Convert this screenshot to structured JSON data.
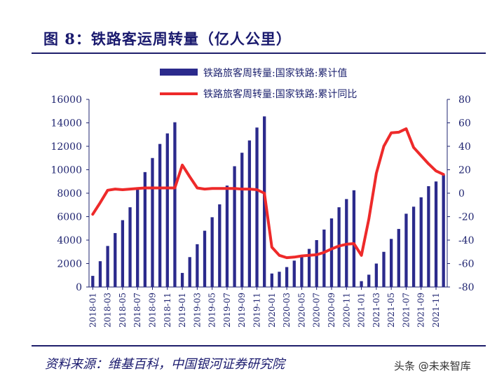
{
  "figure": {
    "title": "图 8：铁路客运周转量（亿人公里）",
    "source": "资料来源：维基百科，中国银河证券研究院",
    "watermark": "头条 @未来智库"
  },
  "colors": {
    "bar": "#2b2a8c",
    "line": "#ee2a2a",
    "text": "#1f2470"
  },
  "chart_data": {
    "type": "bar",
    "title": "",
    "categories": [
      "2018-01",
      "2018-02",
      "2018-03",
      "2018-04",
      "2018-05",
      "2018-06",
      "2018-07",
      "2018-08",
      "2018-09",
      "2018-10",
      "2018-11",
      "2018-12",
      "2019-01",
      "2019-02",
      "2019-03",
      "2019-04",
      "2019-05",
      "2019-06",
      "2019-07",
      "2019-08",
      "2019-09",
      "2019-10",
      "2019-11",
      "2019-12",
      "2020-01",
      "2020-02",
      "2020-03",
      "2020-04",
      "2020-05",
      "2020-06",
      "2020-07",
      "2020-08",
      "2020-09",
      "2020-10",
      "2020-11",
      "2020-12",
      "2021-01",
      "2021-02",
      "2021-03",
      "2021-04",
      "2021-05",
      "2021-06",
      "2021-07",
      "2021-08",
      "2021-09",
      "2021-10",
      "2021-11",
      "2021-12"
    ],
    "tick_labels": [
      "2018-01",
      "2018-03",
      "2018-05",
      "2018-07",
      "2018-09",
      "2018-11",
      "2019-01",
      "2019-03",
      "2019-05",
      "2019-07",
      "2019-09",
      "2019-11",
      "2020-01",
      "2020-03",
      "2020-05",
      "2020-07",
      "2020-09",
      "2020-11",
      "2021-01",
      "2021-03",
      "2021-05",
      "2021-07",
      "2021-09",
      "2021-11"
    ],
    "series": [
      {
        "name": "铁路旅客周转量:国家铁路:累计值",
        "type": "bar",
        "axis": "left",
        "values": [
          950,
          2200,
          3500,
          4600,
          5700,
          6800,
          8300,
          9800,
          11000,
          12200,
          13100,
          14050,
          1200,
          2550,
          3650,
          4800,
          5950,
          7050,
          8650,
          10300,
          11450,
          12500,
          13600,
          14550,
          1150,
          1300,
          1700,
          2250,
          2650,
          3250,
          4000,
          4900,
          5850,
          6800,
          7500,
          8250,
          500,
          1050,
          2000,
          3000,
          4100,
          4950,
          6250,
          6850,
          7650,
          8600,
          9000,
          9550
        ]
      },
      {
        "name": "铁路旅客周转量:国家铁路:累计同比",
        "type": "line",
        "axis": "right",
        "values": [
          -18,
          -8,
          2.5,
          3.5,
          3,
          3.5,
          4,
          4.5,
          4.5,
          4.5,
          4.5,
          4.5,
          24,
          14,
          4.5,
          3.5,
          4,
          4,
          4,
          4,
          3.5,
          3.5,
          3,
          0,
          -46,
          -53,
          -55,
          -54.5,
          -53.5,
          -53,
          -52.5,
          -50.5,
          -47.5,
          -45,
          -43.5,
          -43,
          -53,
          -22,
          17,
          40,
          51.5,
          52,
          55,
          39,
          32,
          25,
          19,
          16
        ]
      }
    ],
    "ylim_left": [
      0,
      16000
    ],
    "yticks_left": [
      0,
      2000,
      4000,
      6000,
      8000,
      10000,
      12000,
      14000,
      16000
    ],
    "ylim_right": [
      -80,
      80
    ],
    "yticks_right": [
      -80,
      -60,
      -40,
      -20,
      0,
      20,
      40,
      60,
      80
    ],
    "legend_position": "top-center",
    "grid": false
  }
}
